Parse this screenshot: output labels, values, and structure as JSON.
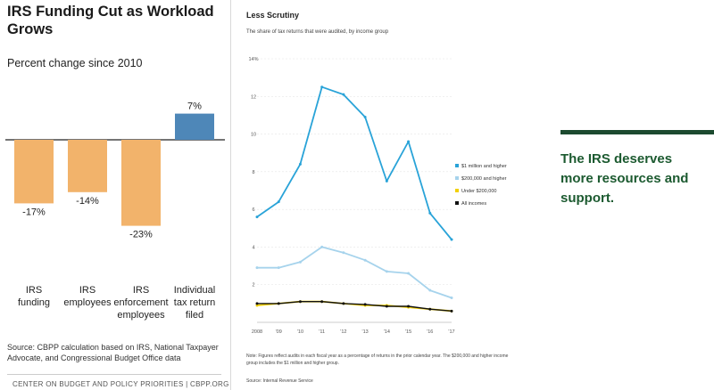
{
  "left_chart": {
    "title": "IRS Funding Cut as Workload Grows",
    "subtitle": "Percent change since 2010",
    "source": "Source: CBPP calculation based on IRS, National Taxpayer Advocate, and Congressional Budget Office data",
    "org": "CENTER ON BUDGET AND POLICY PRIORITIES | CBPP.ORG",
    "colors": {
      "negative": "#f2b36b",
      "positive": "#4e87b8"
    }
  },
  "middle_chart": {
    "title": "Less Scrutiny",
    "subtitle": "The share of tax returns that were audited, by income group",
    "note": "Note: Figures reflect audits in each fiscal year as a percentage of returns in the prior calendar year. The $200,000 and higher income group includes the $1 million and higher group.",
    "source": "Source: Internal Revenue Service",
    "colors": {
      "s1": "#29a3d8",
      "s2": "#a6d3ec",
      "s3": "#f2d000",
      "s4": "#111111"
    }
  },
  "right_panel": {
    "text": "The IRS deserves more resources and support."
  },
  "chart_data": [
    {
      "type": "bar",
      "title": "IRS Funding Cut as Workload Grows",
      "subtitle": "Percent change since 2010",
      "categories": [
        "IRS funding",
        "IRS employees",
        "IRS enforcement employees",
        "Individual tax return filed"
      ],
      "category_lines": [
        [
          "IRS",
          "funding"
        ],
        [
          "IRS",
          "employees"
        ],
        [
          "IRS",
          "enforcement",
          "employees"
        ],
        [
          "Individual",
          "tax return",
          "filed"
        ]
      ],
      "values": [
        -17,
        -14,
        -23,
        7
      ],
      "value_labels": [
        "-17%",
        "-14%",
        "-23%",
        "7%"
      ]
    },
    {
      "type": "line",
      "title": "Less Scrutiny",
      "subtitle": "The share of tax returns that were audited, by income group",
      "x": [
        2008,
        2009,
        2010,
        2011,
        2012,
        2013,
        2014,
        2015,
        2016,
        2017
      ],
      "x_tick_labels": [
        "2008",
        "'09",
        "'10",
        "'11",
        "'12",
        "'13",
        "'14",
        "'15",
        "'16",
        "'17"
      ],
      "y_ticks": [
        0,
        2,
        4,
        6,
        8,
        10,
        12,
        14
      ],
      "y_tick_labels": [
        "",
        "2",
        "4",
        "6",
        "8",
        "10",
        "12",
        "14%"
      ],
      "ylim": [
        0,
        14
      ],
      "legend_position": "right",
      "series": [
        {
          "name": "$1 million and higher",
          "values": [
            5.6,
            6.4,
            8.4,
            12.5,
            12.1,
            10.9,
            7.5,
            9.6,
            5.8,
            4.4
          ]
        },
        {
          "name": "$200,000 and higher",
          "values": [
            2.9,
            2.9,
            3.2,
            4.0,
            3.7,
            3.3,
            2.7,
            2.6,
            1.7,
            1.3
          ]
        },
        {
          "name": "Under $200,000",
          "values": [
            0.9,
            1.0,
            1.1,
            1.1,
            1.0,
            0.9,
            0.9,
            0.8,
            0.7,
            0.6
          ]
        },
        {
          "name": "All incomes",
          "values": [
            1.0,
            1.0,
            1.1,
            1.1,
            1.0,
            0.95,
            0.85,
            0.85,
            0.7,
            0.6
          ]
        }
      ]
    }
  ]
}
